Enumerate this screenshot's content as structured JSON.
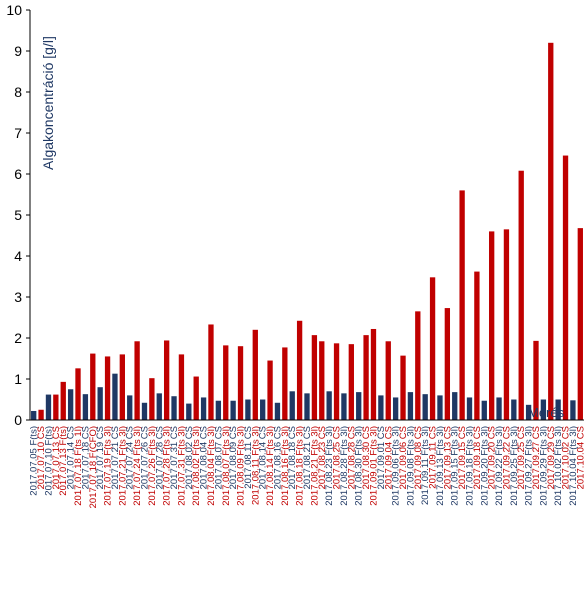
{
  "chart_data": {
    "type": "bar",
    "ylabel": "Algakoncentráció [g/l]",
    "xlabel": "Mérés",
    "ylim": [
      0,
      10
    ],
    "yticks": [
      0,
      1,
      2,
      3,
      4,
      5,
      6,
      7,
      8,
      9,
      10
    ],
    "grid": false,
    "legend": "none",
    "colors": {
      "blue": "#1f3864",
      "red": "#c00000"
    },
    "bars": [
      {
        "label": "2017.07.05 F(ts)",
        "value": 0.22,
        "series": "blue"
      },
      {
        "label": "2017.07.10 CS",
        "value": 0.25,
        "series": "red"
      },
      {
        "label": "2017.07.10 F(ts)",
        "value": 0.62,
        "series": "blue"
      },
      {
        "label": "2017.07.13 CS",
        "value": 0.62,
        "series": "red"
      },
      {
        "label": "2017.07.13 F(ts)",
        "value": 0.93,
        "series": "red"
      },
      {
        "label": "2017.07.14 CS",
        "value": 0.75,
        "series": "blue"
      },
      {
        "label": "2017.07.18 F(ts 1l)",
        "value": 1.26,
        "series": "red"
      },
      {
        "label": "2017.07.18 CS",
        "value": 0.63,
        "series": "blue"
      },
      {
        "label": "2017.07.18 F(CFO)",
        "value": 1.62,
        "series": "red"
      },
      {
        "label": "2017.07.19 CS",
        "value": 0.8,
        "series": "blue"
      },
      {
        "label": "2017.07.19 F(ts 3l)",
        "value": 1.55,
        "series": "red"
      },
      {
        "label": "2017.07.21 CS",
        "value": 1.13,
        "series": "blue"
      },
      {
        "label": "2017.07.21 F(ts 3l)",
        "value": 1.6,
        "series": "red"
      },
      {
        "label": "2017.07.24 CS",
        "value": 0.6,
        "series": "blue"
      },
      {
        "label": "2017.07.24 F(ts 3l)",
        "value": 1.92,
        "series": "red"
      },
      {
        "label": "2017.07.26 CS",
        "value": 0.42,
        "series": "blue"
      },
      {
        "label": "2017.07.26 F(ts 3l)",
        "value": 1.02,
        "series": "red"
      },
      {
        "label": "2017.07.28 CS",
        "value": 0.65,
        "series": "blue"
      },
      {
        "label": "2017.07.28 F(ts 3l)",
        "value": 1.94,
        "series": "red"
      },
      {
        "label": "2017.07.31 CS",
        "value": 0.58,
        "series": "blue"
      },
      {
        "label": "2017.07.31 F(ts 3l)",
        "value": 1.6,
        "series": "red"
      },
      {
        "label": "2017.08.02 CS",
        "value": 0.4,
        "series": "blue"
      },
      {
        "label": "2017.08.02 F(ts 3l)",
        "value": 1.06,
        "series": "red"
      },
      {
        "label": "2017.08.04 CS",
        "value": 0.55,
        "series": "blue"
      },
      {
        "label": "2017.08.04 F(ts 3l)",
        "value": 2.33,
        "series": "red"
      },
      {
        "label": "2017.08.07 CS",
        "value": 0.47,
        "series": "blue"
      },
      {
        "label": "2017.08.07 F(ts 3l)",
        "value": 1.82,
        "series": "red"
      },
      {
        "label": "2017.08.09 CS",
        "value": 0.47,
        "series": "blue"
      },
      {
        "label": "2017.08.09 F(ts 3l)",
        "value": 1.8,
        "series": "red"
      },
      {
        "label": "2017.08.11 CS",
        "value": 0.5,
        "series": "blue"
      },
      {
        "label": "2017.08.11 F(ts 3l)",
        "value": 2.2,
        "series": "red"
      },
      {
        "label": "2017.08.14 CS",
        "value": 0.5,
        "series": "blue"
      },
      {
        "label": "2017.08.14 F(ts 3l)",
        "value": 1.45,
        "series": "red"
      },
      {
        "label": "2017.08.16 CS",
        "value": 0.42,
        "series": "blue"
      },
      {
        "label": "2017.08.16 F(ts 3l)",
        "value": 1.77,
        "series": "red"
      },
      {
        "label": "2017.08.18 CS",
        "value": 0.7,
        "series": "blue"
      },
      {
        "label": "2017.08.18 F(ts 3l)",
        "value": 2.42,
        "series": "red"
      },
      {
        "label": "2017.08.21 CS",
        "value": 0.65,
        "series": "blue"
      },
      {
        "label": "2017.08.21 F(ts 3l)",
        "value": 2.07,
        "series": "red"
      },
      {
        "label": "2017.08.23 CS",
        "value": 1.92,
        "series": "red"
      },
      {
        "label": "2017.08.23 F(ts 3l)",
        "value": 0.7,
        "series": "blue"
      },
      {
        "label": "2017.08.25 CS",
        "value": 1.87,
        "series": "red"
      },
      {
        "label": "2017.08.28 F(ts 3l)",
        "value": 0.65,
        "series": "blue"
      },
      {
        "label": "2017.08.28 CS",
        "value": 1.85,
        "series": "red"
      },
      {
        "label": "2017.08.30 F(ts 3l)",
        "value": 0.68,
        "series": "blue"
      },
      {
        "label": "2017.08.30 CS",
        "value": 2.07,
        "series": "red"
      },
      {
        "label": "2017.09.01 F(ts 3l)",
        "value": 2.22,
        "series": "red"
      },
      {
        "label": "2017.09.01 CS",
        "value": 0.6,
        "series": "blue"
      },
      {
        "label": "2017.09.04 CS",
        "value": 1.92,
        "series": "red"
      },
      {
        "label": "2017.09.06 F(ts 3l)",
        "value": 0.55,
        "series": "blue"
      },
      {
        "label": "2017.09.06 CS",
        "value": 1.57,
        "series": "red"
      },
      {
        "label": "2017.09.08 F(ts 3l)",
        "value": 0.68,
        "series": "blue"
      },
      {
        "label": "2017.09.08 CS",
        "value": 2.65,
        "series": "red"
      },
      {
        "label": "2017.09.11 F(ts 3l)",
        "value": 0.63,
        "series": "blue"
      },
      {
        "label": "2017.09.11 CS",
        "value": 3.48,
        "series": "red"
      },
      {
        "label": "2017.09.13 F(ts 3l)",
        "value": 0.6,
        "series": "blue"
      },
      {
        "label": "2017.09.13 CS",
        "value": 2.73,
        "series": "red"
      },
      {
        "label": "2017.09.15 F(ts 3l)",
        "value": 0.68,
        "series": "blue"
      },
      {
        "label": "2017.09.15 CS",
        "value": 5.6,
        "series": "red"
      },
      {
        "label": "2017.09.18 F(ts 3l)",
        "value": 0.55,
        "series": "blue"
      },
      {
        "label": "2017.09.18 CS",
        "value": 3.62,
        "series": "red"
      },
      {
        "label": "2017.09.20 F(ts 3l)",
        "value": 0.47,
        "series": "blue"
      },
      {
        "label": "2017.09.20 CS",
        "value": 4.6,
        "series": "red"
      },
      {
        "label": "2017.09.22 F(ts 3l)",
        "value": 0.55,
        "series": "blue"
      },
      {
        "label": "2017.09.22 CS",
        "value": 4.65,
        "series": "red"
      },
      {
        "label": "2017.09.25 F(ts 3l)",
        "value": 0.5,
        "series": "blue"
      },
      {
        "label": "2017.09.25 CS",
        "value": 6.08,
        "series": "red"
      },
      {
        "label": "2017.09.27 F(ts 3l)",
        "value": 0.37,
        "series": "blue"
      },
      {
        "label": "2017.09.27 CS",
        "value": 1.93,
        "series": "red"
      },
      {
        "label": "2017.09.29 F(ts 3l)",
        "value": 0.5,
        "series": "blue"
      },
      {
        "label": "2017.09.29 CS",
        "value": 9.2,
        "series": "red"
      },
      {
        "label": "2017.10.02 F(ts 3l)",
        "value": 0.5,
        "series": "blue"
      },
      {
        "label": "2017.10.02 CS",
        "value": 6.45,
        "series": "red"
      },
      {
        "label": "2017.10.04 F(ts 3l)",
        "value": 0.48,
        "series": "blue"
      },
      {
        "label": "2017.10.04 CS",
        "value": 4.68,
        "series": "red"
      }
    ]
  }
}
